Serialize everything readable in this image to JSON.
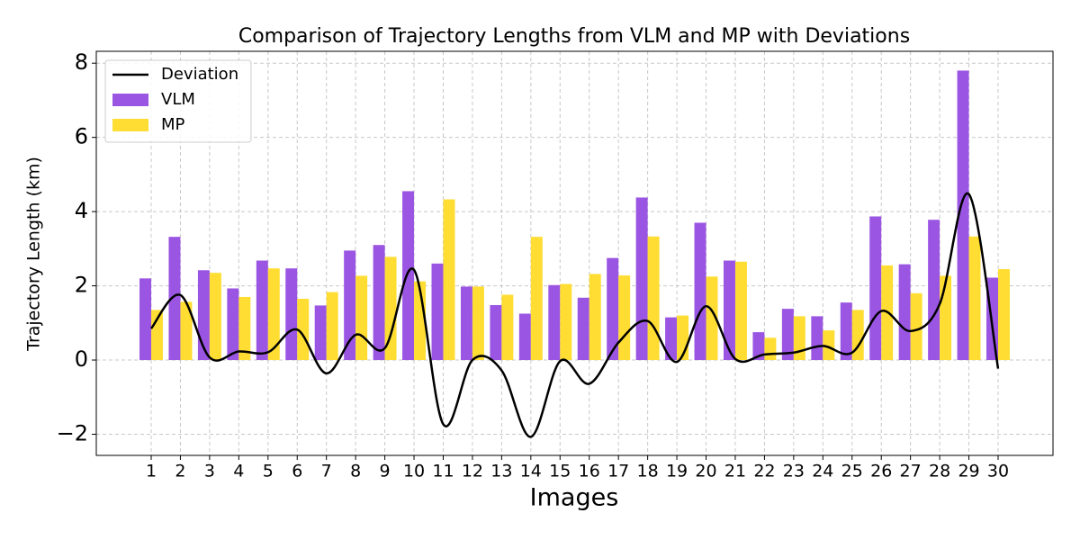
{
  "chart_data": {
    "type": "bar",
    "title": "Comparison of Trajectory Lengths from VLM and MP with Deviations",
    "x_label": "Images",
    "y_label": "Trajectory Length (km)",
    "x": [
      1,
      2,
      3,
      4,
      5,
      6,
      7,
      8,
      9,
      10,
      11,
      12,
      13,
      14,
      15,
      16,
      17,
      18,
      19,
      20,
      21,
      22,
      23,
      24,
      25,
      26,
      27,
      28,
      29,
      30
    ],
    "series": [
      {
        "name": "Deviation",
        "type": "line",
        "color": "#000000",
        "values": [
          0.85,
          1.75,
          0.07,
          0.23,
          0.21,
          0.82,
          -0.36,
          0.68,
          0.32,
          2.43,
          -1.73,
          0,
          -0.28,
          -2.07,
          -0.03,
          -0.64,
          0.47,
          1.05,
          -0.05,
          1.45,
          0.03,
          0.15,
          0.2,
          0.38,
          0.2,
          1.32,
          0.78,
          1.51,
          4.47,
          -0.23
        ]
      },
      {
        "name": "VLM",
        "type": "bar",
        "color": "#9b55e3",
        "values": [
          2.2,
          3.32,
          2.42,
          1.93,
          2.68,
          2.47,
          1.47,
          2.95,
          3.1,
          4.55,
          2.6,
          1.98,
          1.48,
          1.25,
          2.02,
          1.68,
          2.75,
          4.38,
          1.15,
          3.7,
          2.68,
          0.75,
          1.38,
          1.18,
          1.55,
          3.87,
          2.58,
          3.78,
          7.8,
          2.22
        ]
      },
      {
        "name": "MP",
        "type": "bar",
        "color": "#ffdd33",
        "values": [
          1.35,
          1.57,
          2.35,
          1.7,
          2.47,
          1.65,
          1.83,
          2.27,
          2.78,
          2.12,
          4.33,
          1.98,
          1.76,
          3.32,
          2.05,
          2.32,
          2.28,
          3.33,
          1.2,
          2.25,
          2.65,
          0.6,
          1.18,
          0.8,
          1.35,
          2.55,
          1.8,
          2.27,
          3.33,
          2.45
        ]
      }
    ],
    "xlim": [
      -0.88,
      31.88
    ],
    "xticks": [
      1,
      2,
      3,
      4,
      5,
      6,
      7,
      8,
      9,
      10,
      11,
      12,
      13,
      14,
      15,
      16,
      17,
      18,
      19,
      20,
      21,
      22,
      23,
      24,
      25,
      26,
      27,
      28,
      29,
      30
    ],
    "ylim": [
      -2.57,
      8.32
    ],
    "yticks": [
      {
        "value": -2,
        "label": "−2"
      },
      0,
      2,
      4,
      6,
      8
    ],
    "grid": true,
    "legend": "upper-left"
  }
}
